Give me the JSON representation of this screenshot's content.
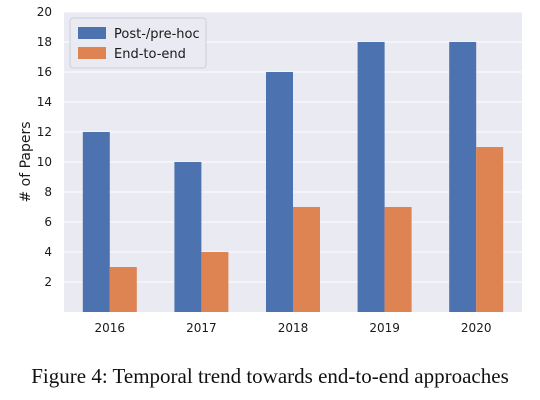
{
  "caption": "Figure 4: Temporal trend towards end-to-end approaches",
  "chart_data": {
    "type": "bar",
    "title": "",
    "xlabel": "",
    "ylabel": "# of Papers",
    "categories": [
      "2016",
      "2017",
      "2018",
      "2019",
      "2020"
    ],
    "series": [
      {
        "name": "Post-/pre-hoc",
        "values": [
          12,
          10,
          16,
          18,
          18
        ],
        "color": "#4c72b0"
      },
      {
        "name": "End-to-end",
        "values": [
          3,
          4,
          7,
          7,
          11
        ],
        "color": "#dd8452"
      }
    ],
    "ylim": [
      0,
      20
    ],
    "yticks": [
      2,
      4,
      6,
      8,
      10,
      12,
      14,
      16,
      18,
      20
    ],
    "grid": true,
    "legend_position": "top-left",
    "background": "#eaeaf2"
  }
}
